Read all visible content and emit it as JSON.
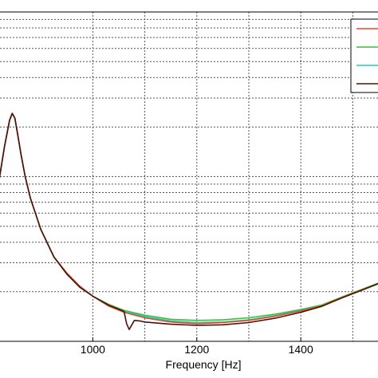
{
  "chart_data": {
    "type": "line",
    "title": "",
    "xlabel": "Frequency [Hz]",
    "ylabel": "",
    "yscale": "log",
    "grid": true,
    "xlim": [
      820,
      1550
    ],
    "ylim": [
      0.01,
      1
    ],
    "x_ticks": [
      1000,
      1200,
      1400
    ],
    "x_tick_labels": [
      "1000",
      "1200",
      "1400"
    ],
    "legend": {
      "placement": "top-right",
      "entries": 4
    },
    "series": [
      {
        "color": "#2fc42f",
        "x": [
          820,
          830,
          840,
          845,
          850,
          855,
          862,
          870,
          880,
          900,
          925,
          950,
          975,
          1000,
          1030,
          1060,
          1100,
          1150,
          1200,
          1250,
          1300,
          1350,
          1400,
          1440,
          1480,
          1520,
          1550
        ],
        "y": [
          0.0962,
          0.151,
          0.22,
          0.242,
          0.227,
          0.185,
          0.136,
          0.1,
          0.074,
          0.0478,
          0.0326,
          0.0256,
          0.0213,
          0.0188,
          0.0168,
          0.0154,
          0.0144,
          0.0136,
          0.0134,
          0.0135,
          0.0139,
          0.0146,
          0.0156,
          0.0166,
          0.0186,
          0.0208,
          0.0226
        ]
      },
      {
        "color": "#23c9c9",
        "x": [
          820,
          830,
          840,
          845,
          850,
          855,
          862,
          870,
          880,
          900,
          925,
          950,
          975,
          1000,
          1030,
          1060,
          1100,
          1150,
          1200,
          1250,
          1300,
          1350,
          1400,
          1440,
          1480,
          1520,
          1550
        ],
        "y": [
          0.0962,
          0.151,
          0.22,
          0.242,
          0.227,
          0.185,
          0.136,
          0.1,
          0.074,
          0.0478,
          0.0326,
          0.0256,
          0.0213,
          0.0188,
          0.0166,
          0.0152,
          0.0141,
          0.0133,
          0.013,
          0.0131,
          0.0135,
          0.0143,
          0.0154,
          0.0164,
          0.0184,
          0.0206,
          0.0224
        ]
      },
      {
        "color": "#e8472a",
        "x": [
          820,
          830,
          840,
          845,
          850,
          855,
          862,
          870,
          880,
          900,
          925,
          950,
          975,
          1000,
          1030,
          1060,
          1100,
          1150,
          1200,
          1250,
          1300,
          1350,
          1400,
          1440,
          1480,
          1520,
          1550
        ],
        "y": [
          0.0962,
          0.151,
          0.22,
          0.242,
          0.227,
          0.185,
          0.136,
          0.1,
          0.074,
          0.0478,
          0.0326,
          0.026,
          0.0216,
          0.0188,
          0.0164,
          0.015,
          0.0139,
          0.0131,
          0.0128,
          0.013,
          0.0134,
          0.0142,
          0.0153,
          0.0164,
          0.0185,
          0.0207,
          0.0225
        ]
      },
      {
        "color": "#4a1408",
        "x": [
          820,
          830,
          840,
          845,
          850,
          855,
          862,
          870,
          880,
          900,
          925,
          950,
          975,
          1000,
          1030,
          1060,
          1065,
          1070,
          1075,
          1080,
          1090,
          1100,
          1150,
          1200,
          1250,
          1300,
          1350,
          1400,
          1440,
          1480,
          1520,
          1550
        ],
        "y": [
          0.0962,
          0.151,
          0.22,
          0.242,
          0.227,
          0.185,
          0.136,
          0.1,
          0.074,
          0.0478,
          0.0326,
          0.0256,
          0.0213,
          0.0188,
          0.0166,
          0.0152,
          0.0128,
          0.0118,
          0.0126,
          0.0134,
          0.0133,
          0.0131,
          0.0127,
          0.0125,
          0.0126,
          0.013,
          0.0138,
          0.015,
          0.0163,
          0.0184,
          0.0206,
          0.0225
        ]
      }
    ]
  }
}
